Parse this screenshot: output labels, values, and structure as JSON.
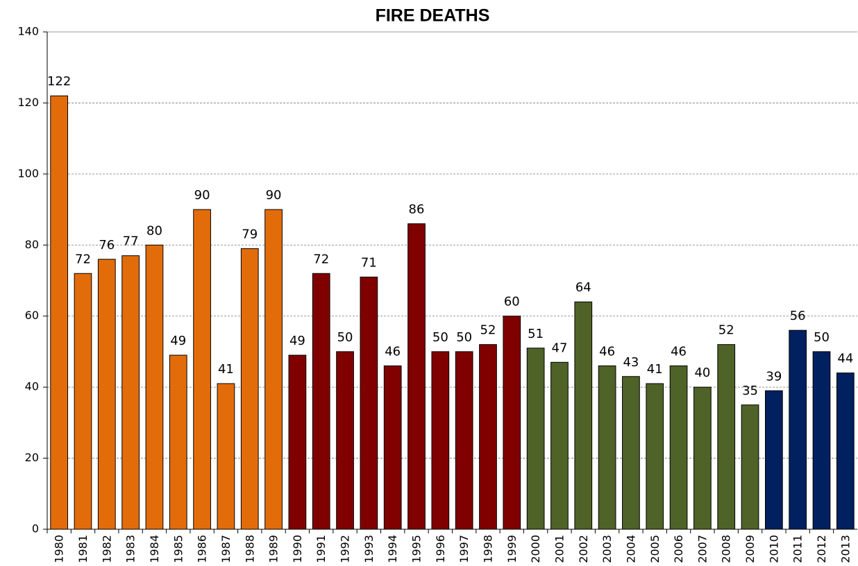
{
  "chart_data": {
    "type": "bar",
    "title": "FIRE DEATHS",
    "categories": [
      "1980",
      "1981",
      "1982",
      "1983",
      "1984",
      "1985",
      "1986",
      "1987",
      "1988",
      "1989",
      "1990",
      "1991",
      "1992",
      "1993",
      "1994",
      "1995",
      "1996",
      "1997",
      "1998",
      "1999",
      "2000",
      "2001",
      "2002",
      "2003",
      "2004",
      "2005",
      "2006",
      "2007",
      "2008",
      "2009",
      "2010",
      "2011",
      "2012",
      "2013"
    ],
    "values": [
      122,
      72,
      76,
      77,
      80,
      49,
      90,
      41,
      79,
      90,
      49,
      72,
      50,
      71,
      46,
      86,
      50,
      50,
      52,
      60,
      51,
      47,
      64,
      46,
      43,
      41,
      46,
      40,
      52,
      35,
      39,
      56,
      50,
      44
    ],
    "colors": [
      "#e36c0a",
      "#e36c0a",
      "#e36c0a",
      "#e36c0a",
      "#e36c0a",
      "#e36c0a",
      "#e36c0a",
      "#e36c0a",
      "#e36c0a",
      "#e36c0a",
      "#800000",
      "#800000",
      "#800000",
      "#800000",
      "#800000",
      "#800000",
      "#800000",
      "#800000",
      "#800000",
      "#800000",
      "#4f6228",
      "#4f6228",
      "#4f6228",
      "#4f6228",
      "#4f6228",
      "#4f6228",
      "#4f6228",
      "#4f6228",
      "#4f6228",
      "#4f6228",
      "#002060",
      "#002060",
      "#002060",
      "#002060"
    ],
    "ylim": [
      0,
      140
    ],
    "yticks": [
      0,
      20,
      40,
      60,
      80,
      100,
      120,
      140
    ],
    "grid": true
  }
}
